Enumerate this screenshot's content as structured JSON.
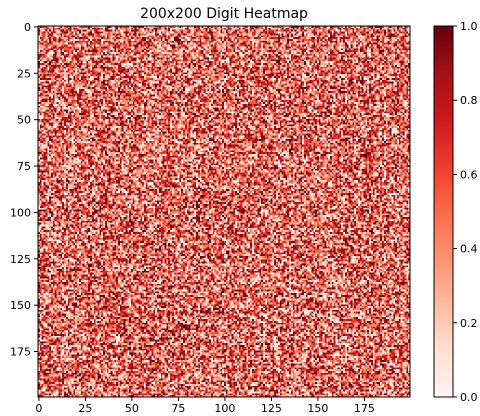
{
  "chart_data": {
    "type": "heatmap",
    "title": "200x200 Digit Heatmap",
    "rows": 200,
    "cols": 200,
    "value_range": [
      0,
      1
    ],
    "colormap": "Reds",
    "colors": {
      "low": "#fff5f0",
      "high": "#67000d"
    },
    "x_ticks": [
      {
        "value": 0,
        "label": "0"
      },
      {
        "value": 25,
        "label": "25"
      },
      {
        "value": 50,
        "label": "50"
      },
      {
        "value": 75,
        "label": "75"
      },
      {
        "value": 100,
        "label": "100"
      },
      {
        "value": 125,
        "label": "125"
      },
      {
        "value": 150,
        "label": "150"
      },
      {
        "value": 175,
        "label": "175"
      }
    ],
    "y_ticks": [
      {
        "value": 0,
        "label": "0"
      },
      {
        "value": 25,
        "label": "25"
      },
      {
        "value": 50,
        "label": "50"
      },
      {
        "value": 75,
        "label": "75"
      },
      {
        "value": 100,
        "label": "100"
      },
      {
        "value": 125,
        "label": "125"
      },
      {
        "value": 150,
        "label": "150"
      },
      {
        "value": 175,
        "label": "175"
      }
    ],
    "colorbar_ticks": [
      {
        "value": 0.0,
        "label": "0.0"
      },
      {
        "value": 0.2,
        "label": "0.2"
      },
      {
        "value": 0.4,
        "label": "0.4"
      },
      {
        "value": 0.6,
        "label": "0.6"
      },
      {
        "value": 0.8,
        "label": "0.8"
      },
      {
        "value": 1.0,
        "label": "1.0"
      }
    ],
    "grid": false,
    "colorbar_position": "right"
  }
}
